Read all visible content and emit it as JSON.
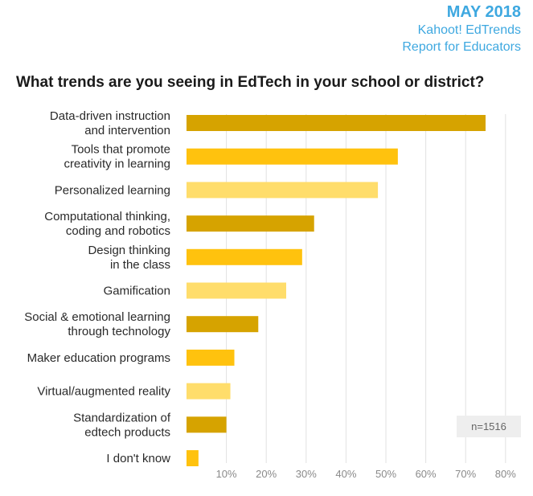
{
  "header": {
    "date": "MAY 2018",
    "line1": "Kahoot! EdTrends",
    "line2": "Report for Educators"
  },
  "note": "n=1516",
  "colors": {
    "accent": "#3ea8e0",
    "bar_dark": "#d6a300",
    "bar_mid": "#ffc20e",
    "bar_light": "#ffdd6b",
    "grid": "#e2e2e2"
  },
  "chart_data": {
    "type": "bar",
    "orientation": "horizontal",
    "title": "What trends are you seeing in EdTech in your school or district?",
    "categories": [
      [
        "Data-driven instruction",
        "and intervention"
      ],
      [
        "Tools that promote",
        "creativity in learning"
      ],
      [
        "Personalized learning"
      ],
      [
        "Computational thinking,",
        "coding and robotics"
      ],
      [
        "Design thinking",
        "in the class"
      ],
      [
        "Gamification"
      ],
      [
        "Social & emotional learning",
        "through technology"
      ],
      [
        "Maker education programs"
      ],
      [
        "Virtual/augmented reality"
      ],
      [
        "Standardization of",
        "edtech products"
      ],
      [
        "I don't know"
      ]
    ],
    "values": [
      75,
      53,
      48,
      32,
      29,
      25,
      18,
      12,
      11,
      10,
      3
    ],
    "bar_color_index": [
      0,
      1,
      2,
      0,
      1,
      2,
      0,
      1,
      2,
      0,
      1
    ],
    "xlim": [
      0,
      80
    ],
    "xticks": [
      "10%",
      "20%",
      "30%",
      "40%",
      "50%",
      "60%",
      "70%",
      "80%"
    ],
    "grid": true,
    "xlabel": "",
    "ylabel": ""
  }
}
